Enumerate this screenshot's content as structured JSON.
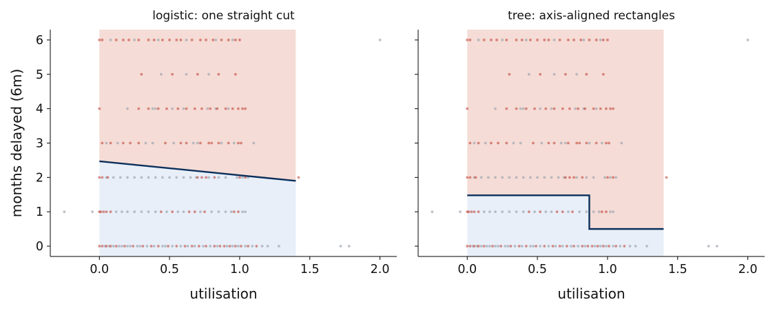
{
  "chart_data": [
    {
      "type": "scatter",
      "title": "logistic: one straight cut",
      "xlabel": "utilisation",
      "ylabel": "months delayed (6m)",
      "xlim": [
        -0.35,
        2.12
      ],
      "ylim": [
        -0.3,
        6.3
      ],
      "xticks": [
        "0.0",
        "0.5",
        "1.0",
        "1.5",
        "2.0"
      ],
      "yticks": [
        "0",
        "1",
        "2",
        "3",
        "4",
        "5",
        "6"
      ],
      "region_x_range": [
        0.0,
        1.4
      ],
      "boundary": [
        [
          0.0,
          2.47
        ],
        [
          1.4,
          1.9
        ]
      ],
      "colors": {
        "delayed_region": "#f5dcd6",
        "ontime_region": "#e8eff8",
        "boundary": "#0b2f5b",
        "points_red": "#c0392b",
        "points_gray": "#9aa3ad"
      },
      "legend": "none",
      "grid": false
    },
    {
      "type": "scatter",
      "title": "tree: axis-aligned rectangles",
      "xlabel": "utilisation",
      "ylabel": "",
      "xlim": [
        -0.35,
        2.12
      ],
      "ylim": [
        -0.3,
        6.3
      ],
      "xticks": [
        "0.0",
        "0.5",
        "1.0",
        "1.5",
        "2.0"
      ],
      "yticks": [
        "",
        "",
        "",
        "",
        "",
        "",
        ""
      ],
      "region_x_range": [
        0.0,
        1.4
      ],
      "boundary": [
        [
          0.0,
          1.48
        ],
        [
          0.87,
          1.48
        ],
        [
          0.87,
          0.5
        ],
        [
          1.4,
          0.5
        ]
      ],
      "colors": {
        "delayed_region": "#f5dcd6",
        "ontime_region": "#e8eff8",
        "boundary": "#0b2f5b",
        "points_red": "#c0392b",
        "points_gray": "#9aa3ad"
      },
      "legend": "none",
      "grid": false
    }
  ],
  "points": {
    "red": [
      [
        0.0,
        6
      ],
      [
        0.02,
        6
      ],
      [
        0.12,
        6
      ],
      [
        0.17,
        6
      ],
      [
        0.21,
        6
      ],
      [
        0.28,
        6
      ],
      [
        0.35,
        6
      ],
      [
        0.39,
        6
      ],
      [
        0.45,
        6
      ],
      [
        0.5,
        6
      ],
      [
        0.55,
        6
      ],
      [
        0.58,
        6
      ],
      [
        0.66,
        6
      ],
      [
        0.72,
        6
      ],
      [
        0.76,
        6
      ],
      [
        0.81,
        6
      ],
      [
        0.87,
        6
      ],
      [
        0.92,
        6
      ],
      [
        0.97,
        6
      ],
      [
        1.0,
        6
      ],
      [
        0.3,
        5
      ],
      [
        0.52,
        5
      ],
      [
        0.7,
        5
      ],
      [
        0.85,
        5
      ],
      [
        0.97,
        5
      ],
      [
        0.0,
        4
      ],
      [
        0.28,
        4
      ],
      [
        0.35,
        4
      ],
      [
        0.42,
        4
      ],
      [
        0.48,
        4
      ],
      [
        0.56,
        4
      ],
      [
        0.62,
        4
      ],
      [
        0.68,
        4
      ],
      [
        0.73,
        4
      ],
      [
        0.79,
        4
      ],
      [
        0.84,
        4
      ],
      [
        0.9,
        4
      ],
      [
        0.95,
        4
      ],
      [
        0.99,
        4
      ],
      [
        1.02,
        4
      ],
      [
        1.04,
        4
      ],
      [
        0.02,
        3
      ],
      [
        0.08,
        3
      ],
      [
        0.17,
        3
      ],
      [
        0.22,
        3
      ],
      [
        0.28,
        3
      ],
      [
        0.47,
        3
      ],
      [
        0.58,
        3
      ],
      [
        0.62,
        3
      ],
      [
        0.72,
        3
      ],
      [
        0.78,
        3
      ],
      [
        0.8,
        3
      ],
      [
        0.85,
        3
      ],
      [
        0.92,
        3
      ],
      [
        0.99,
        3
      ],
      [
        1.01,
        3
      ],
      [
        0.0,
        2
      ],
      [
        0.02,
        2
      ],
      [
        0.06,
        2
      ],
      [
        0.7,
        2
      ],
      [
        0.73,
        2
      ],
      [
        0.76,
        2
      ],
      [
        0.82,
        2
      ],
      [
        1.0,
        2
      ],
      [
        1.04,
        2
      ],
      [
        1.42,
        2
      ],
      [
        0.0,
        1
      ],
      [
        0.01,
        1
      ],
      [
        0.03,
        1
      ],
      [
        0.05,
        1
      ],
      [
        0.08,
        1
      ],
      [
        0.44,
        1
      ],
      [
        0.52,
        1
      ],
      [
        0.64,
        1
      ],
      [
        0.68,
        1
      ],
      [
        0.75,
        1
      ],
      [
        0.96,
        1
      ],
      [
        0.99,
        1
      ],
      [
        0.0,
        0
      ],
      [
        0.02,
        0
      ],
      [
        0.05,
        0
      ],
      [
        0.08,
        0
      ],
      [
        0.12,
        0
      ],
      [
        0.18,
        0
      ],
      [
        0.24,
        0
      ],
      [
        0.31,
        0
      ],
      [
        0.37,
        0
      ],
      [
        0.42,
        0
      ],
      [
        0.49,
        0
      ],
      [
        0.55,
        0
      ],
      [
        0.61,
        0
      ],
      [
        0.66,
        0
      ],
      [
        0.71,
        0
      ],
      [
        0.76,
        0
      ],
      [
        0.82,
        0
      ],
      [
        0.86,
        0
      ],
      [
        0.89,
        0
      ],
      [
        0.93,
        0
      ],
      [
        0.97,
        0
      ],
      [
        1.01,
        0
      ],
      [
        1.06,
        0
      ],
      [
        1.12,
        0
      ]
    ],
    "gray": [
      [
        0.08,
        6
      ],
      [
        0.25,
        6
      ],
      [
        0.42,
        6
      ],
      [
        0.62,
        6
      ],
      [
        0.83,
        6
      ],
      [
        0.95,
        6
      ],
      [
        2.0,
        6
      ],
      [
        0.44,
        5
      ],
      [
        0.62,
        5
      ],
      [
        0.78,
        5
      ],
      [
        0.2,
        4
      ],
      [
        0.38,
        4
      ],
      [
        0.4,
        4
      ],
      [
        0.52,
        4
      ],
      [
        0.6,
        4
      ],
      [
        0.77,
        4
      ],
      [
        0.83,
        4
      ],
      [
        0.92,
        4
      ],
      [
        0.05,
        3
      ],
      [
        0.13,
        3
      ],
      [
        0.33,
        3
      ],
      [
        0.38,
        3
      ],
      [
        0.53,
        3
      ],
      [
        0.67,
        3
      ],
      [
        0.7,
        3
      ],
      [
        0.87,
        3
      ],
      [
        0.96,
        3
      ],
      [
        1.1,
        3
      ],
      [
        0.05,
        2
      ],
      [
        0.1,
        2
      ],
      [
        0.15,
        2
      ],
      [
        0.2,
        2
      ],
      [
        0.25,
        2
      ],
      [
        0.3,
        2
      ],
      [
        0.35,
        2
      ],
      [
        0.4,
        2
      ],
      [
        0.45,
        2
      ],
      [
        0.5,
        2
      ],
      [
        0.55,
        2
      ],
      [
        0.6,
        2
      ],
      [
        0.65,
        2
      ],
      [
        0.69,
        2
      ],
      [
        0.78,
        2
      ],
      [
        0.85,
        2
      ],
      [
        0.9,
        2
      ],
      [
        0.98,
        2
      ],
      [
        1.02,
        2
      ],
      [
        1.06,
        2
      ],
      [
        -0.25,
        1
      ],
      [
        -0.05,
        1
      ],
      [
        0.12,
        1
      ],
      [
        0.16,
        1
      ],
      [
        0.2,
        1
      ],
      [
        0.25,
        1
      ],
      [
        0.3,
        1
      ],
      [
        0.35,
        1
      ],
      [
        0.4,
        1
      ],
      [
        0.48,
        1
      ],
      [
        0.56,
        1
      ],
      [
        0.6,
        1
      ],
      [
        0.72,
        1
      ],
      [
        0.8,
        1
      ],
      [
        0.85,
        1
      ],
      [
        0.9,
        1
      ],
      [
        0.94,
        1
      ],
      [
        1.02,
        1
      ],
      [
        1.04,
        1
      ],
      [
        0.04,
        0
      ],
      [
        0.07,
        0
      ],
      [
        0.1,
        0
      ],
      [
        0.14,
        0
      ],
      [
        0.16,
        0
      ],
      [
        0.2,
        0
      ],
      [
        0.22,
        0
      ],
      [
        0.27,
        0
      ],
      [
        0.29,
        0
      ],
      [
        0.34,
        0
      ],
      [
        0.39,
        0
      ],
      [
        0.45,
        0
      ],
      [
        0.47,
        0
      ],
      [
        0.52,
        0
      ],
      [
        0.58,
        0
      ],
      [
        0.63,
        0
      ],
      [
        0.68,
        0
      ],
      [
        0.74,
        0
      ],
      [
        0.79,
        0
      ],
      [
        0.84,
        0
      ],
      [
        0.91,
        0
      ],
      [
        0.95,
        0
      ],
      [
        0.99,
        0
      ],
      [
        1.04,
        0
      ],
      [
        1.09,
        0
      ],
      [
        1.16,
        0
      ],
      [
        1.2,
        0
      ],
      [
        1.28,
        0
      ],
      [
        1.72,
        0
      ],
      [
        1.78,
        0
      ]
    ]
  }
}
